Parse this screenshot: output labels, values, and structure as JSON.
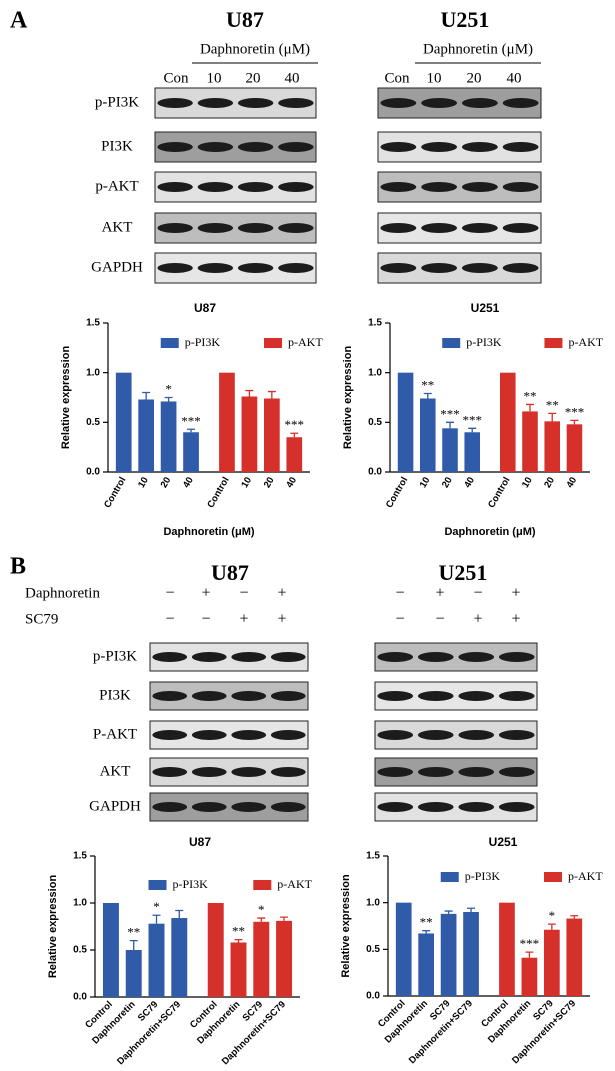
{
  "panels": [
    "A",
    "B"
  ],
  "blots": [
    {
      "cell": "U87",
      "treatment": "Daphnoretin (μM)",
      "lanes": [
        "Con",
        "10",
        "20",
        "40"
      ],
      "rows": [
        "p-PI3K",
        "PI3K",
        "p-AKT",
        "AKT",
        "GAPDH"
      ]
    },
    {
      "cell": "U251",
      "treatment": "Daphnoretin (μM)",
      "lanes": [
        "Con",
        "10",
        "20",
        "40"
      ],
      "rows": []
    },
    {
      "cell": "U87",
      "conditions": [
        {
          "name": "Daphnoretin",
          "signs": [
            "−",
            "+",
            "−",
            "+"
          ]
        },
        {
          "name": "SC79",
          "signs": [
            "−",
            "−",
            "+",
            "+"
          ]
        }
      ],
      "rows": [
        "p-PI3K",
        "PI3K",
        "P-AKT",
        "AKT",
        "GAPDH"
      ]
    },
    {
      "cell": "U251",
      "conditions": [
        {
          "signs": [
            "−",
            "+",
            "−",
            "+"
          ]
        },
        {
          "signs": [
            "−",
            "−",
            "+",
            "+"
          ]
        }
      ],
      "rows": []
    }
  ],
  "chart_data": [
    {
      "type": "bar",
      "title": "U87",
      "ylabel": "Relative expression",
      "xlabel": "Daphnoretin (μM)",
      "categories": [
        "Control",
        "10",
        "20",
        "40"
      ],
      "ylim": [
        0,
        1.5
      ],
      "yticks": [
        {
          "value": 0,
          "label": "0.0"
        },
        0.5,
        {
          "value": 1,
          "label": "1.0"
        },
        1.5
      ],
      "series": [
        {
          "name": "p-PI3K",
          "color": "#2f5ba8",
          "values": [
            1.0,
            0.73,
            0.71,
            0.4
          ],
          "errors": [
            null,
            0.07,
            0.04,
            0.03
          ],
          "stars": [
            null,
            null,
            "*",
            "***"
          ]
        },
        {
          "name": "p-AKT",
          "color": "#d6302a",
          "values": [
            1.0,
            0.76,
            0.74,
            0.35
          ],
          "errors": [
            null,
            0.06,
            0.07,
            0.04
          ],
          "stars": [
            null,
            null,
            null,
            "***"
          ]
        }
      ]
    },
    {
      "type": "bar",
      "title": "U251",
      "ylabel": "Relative expression",
      "xlabel": "Daphnoretin (μM)",
      "categories": [
        "Control",
        "10",
        "20",
        "40"
      ],
      "ylim": [
        0,
        1.5
      ],
      "yticks": [
        {
          "value": 0,
          "label": "0.0"
        },
        0.5,
        {
          "value": 1,
          "label": "1.0"
        },
        1.5
      ],
      "series": [
        {
          "name": "p-PI3K",
          "color": "#2f5ba8",
          "values": [
            1.0,
            0.74,
            0.44,
            0.4
          ],
          "errors": [
            null,
            0.05,
            0.06,
            0.04
          ],
          "stars": [
            null,
            "**",
            "***",
            "***"
          ]
        },
        {
          "name": "p-AKT",
          "color": "#d6302a",
          "values": [
            1.0,
            0.61,
            0.51,
            0.48
          ],
          "errors": [
            null,
            0.07,
            0.08,
            0.04
          ],
          "stars": [
            null,
            "**",
            "**",
            "***"
          ]
        }
      ]
    },
    {
      "type": "bar",
      "title": "U87",
      "ylabel": "Relative expression",
      "categories": [
        "Control",
        "Daphnoretin",
        "SC79",
        "Daphnoretin+SC79"
      ],
      "ylim": [
        0,
        1.5
      ],
      "yticks": [
        {
          "value": 0,
          "label": "0.0"
        },
        0.5,
        {
          "value": 1,
          "label": "1.0"
        },
        1.5
      ],
      "series": [
        {
          "name": "p-PI3K",
          "color": "#2f5ba8",
          "values": [
            1.0,
            0.5,
            0.78,
            0.84
          ],
          "errors": [
            null,
            0.1,
            0.09,
            0.08
          ],
          "stars": [
            null,
            "**",
            "*",
            null
          ]
        },
        {
          "name": "p-AKT",
          "color": "#d6302a",
          "values": [
            1.0,
            0.58,
            0.8,
            0.81
          ],
          "errors": [
            null,
            0.03,
            0.04,
            0.04
          ],
          "stars": [
            null,
            "**",
            "*",
            null
          ]
        }
      ]
    },
    {
      "type": "bar",
      "title": "U251",
      "ylabel": "Relative expression",
      "categories": [
        "Control",
        "Daphnoretin",
        "SC79",
        "Daphnoretin+SC79"
      ],
      "ylim": [
        0,
        1.5
      ],
      "yticks": [
        {
          "value": 0,
          "label": "0.0"
        },
        0.5,
        {
          "value": 1,
          "label": "1.0"
        },
        1.5
      ],
      "series": [
        {
          "name": "p-PI3K",
          "color": "#2f5ba8",
          "values": [
            1.0,
            0.67,
            0.88,
            0.9
          ],
          "errors": [
            null,
            0.03,
            0.03,
            0.04
          ],
          "stars": [
            null,
            "**",
            null,
            null
          ]
        },
        {
          "name": "p-AKT",
          "color": "#d6302a",
          "values": [
            1.0,
            0.41,
            0.71,
            0.83
          ],
          "errors": [
            null,
            0.06,
            0.06,
            0.03
          ],
          "stars": [
            null,
            "***",
            "*",
            null
          ]
        }
      ]
    }
  ]
}
